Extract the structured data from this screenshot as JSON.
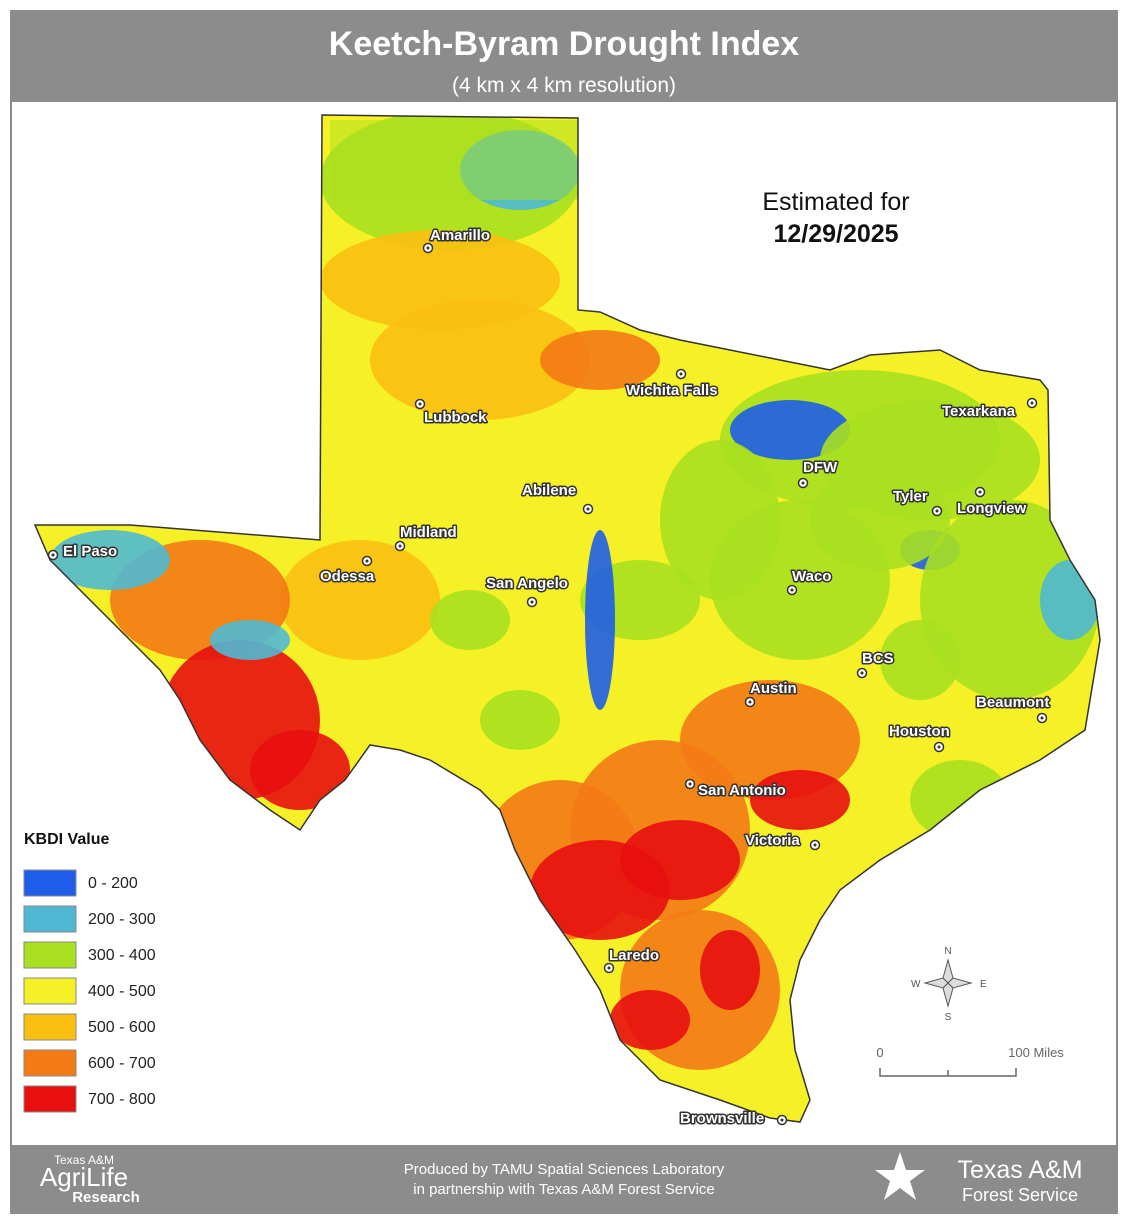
{
  "header": {
    "title": "Keetch-Byram Drought Index",
    "subtitle": "(4 km x 4 km resolution)"
  },
  "date": {
    "label": "Estimated for",
    "value": "12/29/2025"
  },
  "legend": {
    "title": "KBDI Value",
    "items": [
      {
        "label": "0 - 200",
        "color": "#1f5ee8"
      },
      {
        "label": "200 - 300",
        "color": "#4fb9d3"
      },
      {
        "label": "300 - 400",
        "color": "#a9e01f"
      },
      {
        "label": "400 - 500",
        "color": "#f6f126"
      },
      {
        "label": "500 - 600",
        "color": "#fbbf12"
      },
      {
        "label": "600 - 700",
        "color": "#f47a16"
      },
      {
        "label": "700 - 800",
        "color": "#e8100f"
      }
    ]
  },
  "cities": [
    "Amarillo",
    "Lubbock",
    "Wichita Falls",
    "Texarkana",
    "DFW",
    "Tyler",
    "Longview",
    "Abilene",
    "Midland",
    "Odessa",
    "El Paso",
    "San Angelo",
    "Waco",
    "BCS",
    "Austin",
    "Beaumont",
    "Houston",
    "San Antonio",
    "Victoria",
    "Laredo",
    "Brownsville"
  ],
  "scale": {
    "start": "0",
    "end": "100 Miles"
  },
  "compass": {
    "north": "N",
    "south": "S",
    "east": "E",
    "west": "W"
  },
  "footer": {
    "left": {
      "line1": "Texas A&M",
      "line2": "AgriLife",
      "line3": "Research"
    },
    "center": [
      "Produced by TAMU Spatial Sciences Laboratory",
      "in partnership with Texas A&M Forest Service"
    ],
    "right": {
      "line1": "Texas A&M",
      "line2": "Forest Service"
    }
  }
}
